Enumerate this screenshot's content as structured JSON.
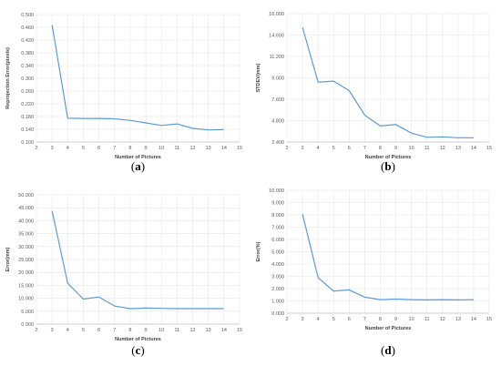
{
  "chart_data": [
    {
      "type": "line",
      "caption": "a",
      "xlabel": "Number of Pictures",
      "ylabel": "Reprojection Error(pixels)",
      "xlim": [
        2,
        15
      ],
      "xticks": [
        2,
        3,
        4,
        5,
        6,
        7,
        8,
        9,
        10,
        11,
        12,
        13,
        14,
        15
      ],
      "ylim": [
        0.1,
        0.5
      ],
      "yticks": [
        "0.100",
        "0.140",
        "0.180",
        "0.220",
        "0.260",
        "0.300",
        "0.340",
        "0.380",
        "0.420",
        "0.460",
        "0.500"
      ],
      "grid": true,
      "x": [
        3,
        4,
        5,
        6,
        7,
        8,
        9,
        10,
        11,
        12,
        13,
        14
      ],
      "y": [
        0.467,
        0.175,
        0.174,
        0.174,
        0.173,
        0.168,
        0.16,
        0.152,
        0.157,
        0.143,
        0.138,
        0.139
      ]
    },
    {
      "type": "line",
      "caption": "b",
      "xlabel": "Number of Pictures",
      "ylabel": "STDEV(mm)",
      "xlim": [
        2,
        15
      ],
      "xticks": [
        2,
        3,
        4,
        5,
        6,
        7,
        8,
        9,
        10,
        11,
        12,
        13,
        14,
        15
      ],
      "ylim": [
        2.4,
        16.0
      ],
      "yticks": [
        "2.400",
        "4.800",
        "7.600",
        "9.000",
        "11.200",
        "14.600",
        "16.000"
      ],
      "grid": true,
      "x": [
        3,
        4,
        5,
        6,
        7,
        8,
        9,
        10,
        11,
        12,
        13,
        14
      ],
      "y": [
        14.55,
        8.75,
        8.85,
        7.85,
        5.25,
        4.1,
        4.25,
        3.35,
        2.9,
        2.95,
        2.85,
        2.85
      ]
    },
    {
      "type": "line",
      "caption": "c",
      "xlabel": "Number of Pictures",
      "ylabel": "Error(mm)",
      "xlim": [
        2,
        15
      ],
      "xticks": [
        2,
        3,
        4,
        5,
        6,
        7,
        8,
        9,
        10,
        11,
        12,
        13,
        14,
        15
      ],
      "ylim": [
        0,
        50
      ],
      "yticks": [
        "0.000",
        "5.000",
        "10.000",
        "15.000",
        "20.000",
        "25.000",
        "30.000",
        "35.000",
        "40.000",
        "45.000",
        "50.000"
      ],
      "grid": true,
      "x": [
        3,
        4,
        5,
        6,
        7,
        8,
        9,
        10,
        11,
        12,
        13,
        14
      ],
      "y": [
        43.8,
        15.8,
        9.7,
        10.5,
        7.0,
        6.0,
        6.2,
        6.1,
        6.0,
        6.0,
        6.0,
        6.0
      ]
    },
    {
      "type": "line",
      "caption": "d",
      "xlabel": "Number of Pictures",
      "ylabel": "Error(%)",
      "xlim": [
        2,
        15
      ],
      "xticks": [
        2,
        3,
        4,
        5,
        6,
        7,
        8,
        9,
        10,
        11,
        12,
        13,
        14,
        15
      ],
      "ylim": [
        0,
        10
      ],
      "yticks": [
        "0.000",
        "1.000",
        "2.000",
        "3.000",
        "4.000",
        "5.000",
        "6.000",
        "7.000",
        "8.000",
        "9.000",
        "10.000"
      ],
      "grid": true,
      "x": [
        3,
        4,
        5,
        6,
        7,
        8,
        9,
        10,
        11,
        12,
        13,
        14
      ],
      "y": [
        8.05,
        2.9,
        1.8,
        1.9,
        1.3,
        1.1,
        1.15,
        1.1,
        1.08,
        1.1,
        1.08,
        1.1
      ]
    }
  ]
}
